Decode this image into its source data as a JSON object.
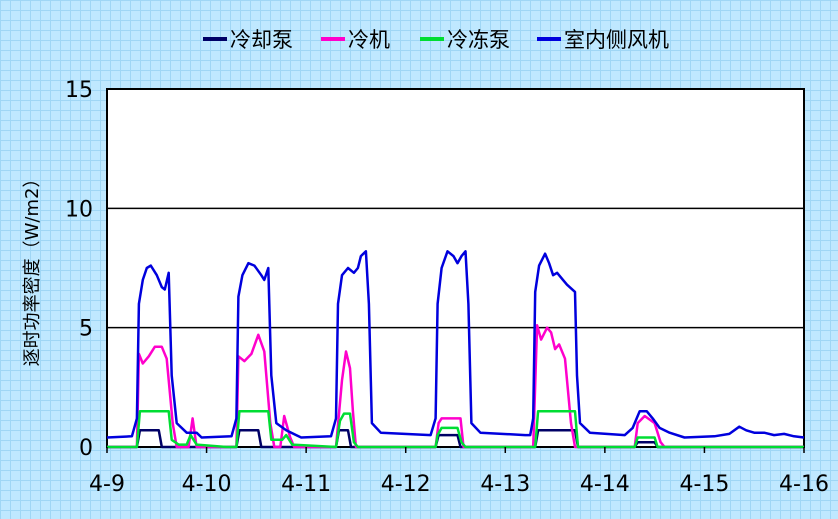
{
  "chart_data": {
    "type": "line",
    "title": "",
    "xlabel": "",
    "ylabel": "逐时功率密度（W/m2）",
    "ylim": [
      0,
      15
    ],
    "yticks": [
      0,
      5,
      10,
      15
    ],
    "xlim": [
      0,
      7
    ],
    "xticks": [
      {
        "v": 0,
        "label": "4-9"
      },
      {
        "v": 1,
        "label": "4-10"
      },
      {
        "v": 2,
        "label": "4-11"
      },
      {
        "v": 3,
        "label": "4-12"
      },
      {
        "v": 4,
        "label": "4-13"
      },
      {
        "v": 5,
        "label": "4-14"
      },
      {
        "v": 6,
        "label": "4-15"
      },
      {
        "v": 7,
        "label": "4-16"
      }
    ],
    "grid": "horizontal major lines",
    "legend_position": "top",
    "series": [
      {
        "name": "冷却泵",
        "color": "#000066",
        "points": [
          [
            0,
            0
          ],
          [
            0.3,
            0
          ],
          [
            0.33,
            0.7
          ],
          [
            0.52,
            0.7
          ],
          [
            0.55,
            0
          ],
          [
            1.3,
            0
          ],
          [
            1.33,
            0.7
          ],
          [
            1.52,
            0.7
          ],
          [
            1.55,
            0
          ],
          [
            2.3,
            0
          ],
          [
            2.33,
            0.7
          ],
          [
            2.42,
            0.7
          ],
          [
            2.45,
            0
          ],
          [
            3.3,
            0
          ],
          [
            3.33,
            0.5
          ],
          [
            3.52,
            0.5
          ],
          [
            3.55,
            0
          ],
          [
            4.3,
            0
          ],
          [
            4.33,
            0.7
          ],
          [
            4.7,
            0.7
          ],
          [
            4.73,
            0
          ],
          [
            5.3,
            0
          ],
          [
            5.33,
            0.2
          ],
          [
            5.5,
            0.2
          ],
          [
            5.53,
            0
          ],
          [
            7,
            0
          ]
        ]
      },
      {
        "name": "冷机",
        "color": "#ff00cc",
        "points": [
          [
            0,
            0
          ],
          [
            0.3,
            0
          ],
          [
            0.32,
            3.9
          ],
          [
            0.36,
            3.5
          ],
          [
            0.42,
            3.8
          ],
          [
            0.48,
            4.2
          ],
          [
            0.55,
            4.2
          ],
          [
            0.6,
            3.7
          ],
          [
            0.66,
            1.0
          ],
          [
            0.7,
            0
          ],
          [
            0.82,
            0
          ],
          [
            0.86,
            1.2
          ],
          [
            0.9,
            0
          ],
          [
            1.3,
            0
          ],
          [
            1.32,
            3.8
          ],
          [
            1.38,
            3.6
          ],
          [
            1.45,
            3.9
          ],
          [
            1.52,
            4.7
          ],
          [
            1.58,
            4.0
          ],
          [
            1.64,
            1.0
          ],
          [
            1.68,
            0
          ],
          [
            1.74,
            0
          ],
          [
            1.78,
            1.3
          ],
          [
            1.84,
            0.4
          ],
          [
            1.88,
            0
          ],
          [
            2.3,
            0
          ],
          [
            2.36,
            2.8
          ],
          [
            2.4,
            4.0
          ],
          [
            2.44,
            3.3
          ],
          [
            2.47,
            1.5
          ],
          [
            2.5,
            0
          ],
          [
            3.3,
            0
          ],
          [
            3.33,
            1.0
          ],
          [
            3.36,
            1.2
          ],
          [
            3.55,
            1.2
          ],
          [
            3.58,
            0
          ],
          [
            4.28,
            0
          ],
          [
            4.32,
            5.1
          ],
          [
            4.36,
            4.5
          ],
          [
            4.42,
            5.0
          ],
          [
            4.46,
            4.8
          ],
          [
            4.5,
            4.1
          ],
          [
            4.54,
            4.3
          ],
          [
            4.6,
            3.7
          ],
          [
            4.66,
            1.0
          ],
          [
            4.7,
            0
          ],
          [
            5.3,
            0
          ],
          [
            5.33,
            1.0
          ],
          [
            5.4,
            1.3
          ],
          [
            5.5,
            1.0
          ],
          [
            5.56,
            0.2
          ],
          [
            5.6,
            0
          ],
          [
            7,
            0
          ]
        ]
      },
      {
        "name": "冷冻泵",
        "color": "#00dd33",
        "points": [
          [
            0,
            0
          ],
          [
            0.3,
            0
          ],
          [
            0.33,
            1.5
          ],
          [
            0.62,
            1.5
          ],
          [
            0.65,
            0.3
          ],
          [
            0.72,
            0.1
          ],
          [
            0.8,
            0.1
          ],
          [
            0.84,
            0.5
          ],
          [
            0.9,
            0.1
          ],
          [
            1.2,
            0
          ],
          [
            1.3,
            0
          ],
          [
            1.33,
            1.5
          ],
          [
            1.62,
            1.5
          ],
          [
            1.65,
            0.3
          ],
          [
            1.76,
            0.3
          ],
          [
            1.8,
            0.5
          ],
          [
            1.86,
            0.1
          ],
          [
            2.3,
            0
          ],
          [
            2.34,
            1.1
          ],
          [
            2.38,
            1.4
          ],
          [
            2.44,
            1.4
          ],
          [
            2.48,
            0.2
          ],
          [
            2.52,
            0
          ],
          [
            3.3,
            0
          ],
          [
            3.32,
            0.5
          ],
          [
            3.36,
            0.8
          ],
          [
            3.52,
            0.8
          ],
          [
            3.56,
            0.2
          ],
          [
            3.6,
            0
          ],
          [
            4.3,
            0
          ],
          [
            4.33,
            1.5
          ],
          [
            4.7,
            1.5
          ],
          [
            4.73,
            0
          ],
          [
            5.3,
            0
          ],
          [
            5.33,
            0.4
          ],
          [
            5.5,
            0.4
          ],
          [
            5.53,
            0
          ],
          [
            7,
            0
          ]
        ]
      },
      {
        "name": "室内侧风机",
        "color": "#0000dd",
        "points": [
          [
            0,
            0.4
          ],
          [
            0.25,
            0.45
          ],
          [
            0.3,
            1.2
          ],
          [
            0.32,
            6.0
          ],
          [
            0.36,
            7.0
          ],
          [
            0.4,
            7.5
          ],
          [
            0.44,
            7.6
          ],
          [
            0.5,
            7.2
          ],
          [
            0.55,
            6.7
          ],
          [
            0.58,
            6.6
          ],
          [
            0.62,
            7.3
          ],
          [
            0.65,
            3.0
          ],
          [
            0.7,
            1.0
          ],
          [
            0.8,
            0.6
          ],
          [
            0.9,
            0.6
          ],
          [
            0.95,
            0.4
          ],
          [
            1.25,
            0.45
          ],
          [
            1.3,
            1.2
          ],
          [
            1.32,
            6.3
          ],
          [
            1.36,
            7.2
          ],
          [
            1.42,
            7.7
          ],
          [
            1.48,
            7.6
          ],
          [
            1.55,
            7.2
          ],
          [
            1.58,
            7.0
          ],
          [
            1.62,
            7.5
          ],
          [
            1.65,
            3.0
          ],
          [
            1.7,
            1.0
          ],
          [
            1.8,
            0.7
          ],
          [
            1.9,
            0.5
          ],
          [
            1.95,
            0.4
          ],
          [
            2.25,
            0.45
          ],
          [
            2.3,
            1.2
          ],
          [
            2.32,
            6.0
          ],
          [
            2.36,
            7.2
          ],
          [
            2.42,
            7.5
          ],
          [
            2.48,
            7.3
          ],
          [
            2.52,
            7.5
          ],
          [
            2.55,
            8.0
          ],
          [
            2.6,
            8.2
          ],
          [
            2.63,
            6.0
          ],
          [
            2.66,
            1.0
          ],
          [
            2.75,
            0.6
          ],
          [
            3.25,
            0.5
          ],
          [
            3.3,
            1.2
          ],
          [
            3.32,
            6.0
          ],
          [
            3.36,
            7.5
          ],
          [
            3.42,
            8.2
          ],
          [
            3.48,
            8.0
          ],
          [
            3.52,
            7.7
          ],
          [
            3.56,
            8.0
          ],
          [
            3.6,
            8.2
          ],
          [
            3.63,
            6.0
          ],
          [
            3.66,
            1.0
          ],
          [
            3.75,
            0.6
          ],
          [
            4.2,
            0.5
          ],
          [
            4.25,
            0.5
          ],
          [
            4.28,
            1.2
          ],
          [
            4.3,
            6.5
          ],
          [
            4.34,
            7.6
          ],
          [
            4.4,
            8.1
          ],
          [
            4.44,
            7.7
          ],
          [
            4.48,
            7.2
          ],
          [
            4.52,
            7.3
          ],
          [
            4.58,
            7.0
          ],
          [
            4.62,
            6.8
          ],
          [
            4.7,
            6.5
          ],
          [
            4.72,
            3.0
          ],
          [
            4.75,
            1.0
          ],
          [
            4.85,
            0.6
          ],
          [
            5.2,
            0.5
          ],
          [
            5.28,
            0.8
          ],
          [
            5.35,
            1.5
          ],
          [
            5.42,
            1.5
          ],
          [
            5.48,
            1.2
          ],
          [
            5.55,
            0.8
          ],
          [
            5.65,
            0.6
          ],
          [
            5.8,
            0.4
          ],
          [
            6.1,
            0.45
          ],
          [
            6.25,
            0.55
          ],
          [
            6.35,
            0.85
          ],
          [
            6.42,
            0.7
          ],
          [
            6.5,
            0.6
          ],
          [
            6.6,
            0.6
          ],
          [
            6.7,
            0.5
          ],
          [
            6.8,
            0.55
          ],
          [
            6.9,
            0.45
          ],
          [
            7,
            0.4
          ]
        ]
      }
    ]
  }
}
